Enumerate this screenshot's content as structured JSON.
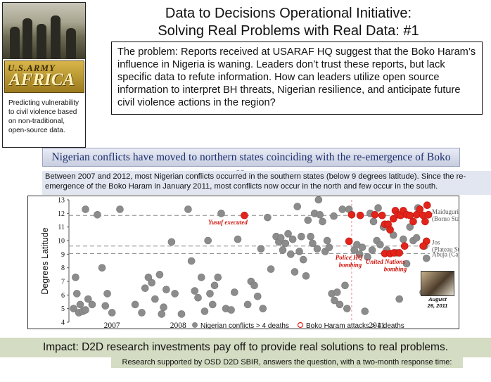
{
  "sidebar": {
    "photo_icon": "soldiers-photo",
    "logo_line1": "U.S.ARMY",
    "logo_line2": "AFRICA",
    "caption": "Predicting vulnerability to civil violence based on non-traditional, open-source data."
  },
  "header": {
    "title_line1": "Data to Decisions Operational Initiative:",
    "title_line2": "Solving Real Problems with Real Data: #1"
  },
  "problem": {
    "text": "The problem: Reports received at USARAF HQ suggest that the Boko Haram’s influence in Nigeria is waning.  Leaders don’t trust these reports, but lack specific data to refute information.  How can leaders utilize open source information to interpret BH threats, Nigerian resilience, and anticipate future civil violence actions in the region?"
  },
  "banner": {
    "text": "Nigerian conflicts have moved to northern states coinciding with the re-emergence of Boko Haram"
  },
  "description": {
    "text": "Between 2007 and 2012, most Nigerian conflicts occurred in the southern states (below 9 degrees latitude).  Since the re-emergence of the Boko Haram in January 2011, most conflicts now occur in the north and few occur in the south."
  },
  "chart_data": {
    "type": "scatter",
    "ylabel": "Degrees Latitude",
    "xlabel": "",
    "ylim": [
      4,
      13
    ],
    "xlim": [
      2006.35,
      2011.8
    ],
    "yticks": [
      4,
      5,
      6,
      7,
      8,
      9,
      10,
      11,
      12,
      13
    ],
    "xticks": [
      {
        "label": "2007",
        "x": 2007
      },
      {
        "label": "2008",
        "x": 2008
      },
      {
        "label": "2011",
        "x": 2011
      }
    ],
    "colors": {
      "nigerian": "#8c8c8c",
      "boko": "#e3241b",
      "annotation": "#d1140c",
      "reference": "#888888"
    },
    "reference_lines": [
      {
        "y": 11.85,
        "label1": "Maiduguri",
        "label2": "(Borno State)"
      },
      {
        "y": 9.6,
        "label1": "Jos",
        "label2": "(Plateau State)"
      },
      {
        "y": 9.05,
        "label1": "Abuja (Capital)",
        "label2": ""
      }
    ],
    "vertical_line": {
      "x": 2010.62
    },
    "annotations": [
      {
        "text": "Yusuf executed",
        "x": 2008.75,
        "y": 11.2
      },
      {
        "text": "Police HQ",
        "x": 2010.58,
        "y": 8.6
      },
      {
        "text": "bombing",
        "x": 2010.6,
        "y": 8.05
      },
      {
        "text": "United Nations",
        "x": 2011.13,
        "y": 8.3
      },
      {
        "text": "bombing",
        "x": 2011.28,
        "y": 7.75
      }
    ],
    "legend": {
      "position": "bottom",
      "nigerian_label": "Nigerian conflicts > 4 deaths",
      "boko_label": "Boko Haram attacks > 4 deaths"
    },
    "series": [
      {
        "name": "Nigerian conflicts > 4 deaths",
        "points": [
          [
            2006.42,
            5.0
          ],
          [
            2006.45,
            7.3
          ],
          [
            2006.47,
            6.1
          ],
          [
            2006.5,
            4.7
          ],
          [
            2006.52,
            5.3
          ],
          [
            2006.56,
            4.8
          ],
          [
            2006.6,
            4.9
          ],
          [
            2006.64,
            5.7
          ],
          [
            2006.7,
            5.3
          ],
          [
            2006.78,
            11.9
          ],
          [
            2006.85,
            8.0
          ],
          [
            2006.9,
            5.2
          ],
          [
            2006.93,
            6.1
          ],
          [
            2007.12,
            12.3
          ],
          [
            2007.35,
            5.3
          ],
          [
            2007.45,
            4.7
          ],
          [
            2007.5,
            6.5
          ],
          [
            2007.55,
            7.3
          ],
          [
            2007.6,
            6.9
          ],
          [
            2007.65,
            5.7
          ],
          [
            2007.72,
            7.5
          ],
          [
            2007.75,
            4.6
          ],
          [
            2007.78,
            5.1
          ],
          [
            2007.82,
            6.4
          ],
          [
            2007.9,
            9.9
          ],
          [
            2007.95,
            6.1
          ],
          [
            2008.05,
            4.6
          ],
          [
            2008.15,
            12.3
          ],
          [
            2008.2,
            8.5
          ],
          [
            2008.25,
            6.3
          ],
          [
            2008.3,
            5.8
          ],
          [
            2008.35,
            7.3
          ],
          [
            2008.4,
            4.8
          ],
          [
            2008.45,
            10.0
          ],
          [
            2008.48,
            6.1
          ],
          [
            2008.52,
            5.3
          ],
          [
            2008.55,
            6.7
          ],
          [
            2008.6,
            7.3
          ],
          [
            2008.65,
            12.0
          ],
          [
            2008.72,
            5.0
          ],
          [
            2008.8,
            4.9
          ],
          [
            2008.85,
            6.2
          ],
          [
            2009.05,
            5.3
          ],
          [
            2009.1,
            7.0
          ],
          [
            2009.15,
            6.7
          ],
          [
            2009.2,
            5.9
          ],
          [
            2009.25,
            9.4
          ],
          [
            2009.28,
            5.0
          ],
          [
            2009.35,
            11.7
          ],
          [
            2009.4,
            7.9
          ],
          [
            2009.48,
            10.3
          ],
          [
            2009.52,
            9.9
          ],
          [
            2009.55,
            10.2
          ],
          [
            2009.58,
            9.3
          ],
          [
            2009.62,
            9.8
          ],
          [
            2009.66,
            10.5
          ],
          [
            2009.7,
            9.0
          ],
          [
            2009.73,
            10.1
          ],
          [
            2009.76,
            7.7
          ],
          [
            2009.8,
            12.5
          ],
          [
            2009.83,
            9.2
          ],
          [
            2009.86,
            10.3
          ],
          [
            2009.89,
            8.6
          ],
          [
            2009.93,
            7.4
          ],
          [
            2009.96,
            11.5
          ],
          [
            2010.0,
            10.3
          ],
          [
            2010.03,
            9.8
          ],
          [
            2010.06,
            12.0
          ],
          [
            2010.1,
            9.4
          ],
          [
            2010.14,
            11.9
          ],
          [
            2010.18,
            11.4
          ],
          [
            2010.22,
            9.2
          ],
          [
            2010.25,
            10.0
          ],
          [
            2010.28,
            9.5
          ],
          [
            2010.32,
            6.1
          ],
          [
            2010.36,
            5.6
          ],
          [
            2010.4,
            6.2
          ],
          [
            2010.44,
            5.3
          ],
          [
            2010.48,
            12.3
          ],
          [
            2010.52,
            6.7
          ],
          [
            2010.55,
            5.0
          ],
          [
            2010.58,
            12.3
          ],
          [
            2010.66,
            9.3
          ],
          [
            2010.7,
            9.7
          ],
          [
            2010.74,
            9.0
          ],
          [
            2010.78,
            9.5
          ],
          [
            2010.82,
            4.8
          ],
          [
            2010.86,
            8.8
          ],
          [
            2010.9,
            12.0
          ],
          [
            2010.95,
            11.4
          ],
          [
            2011.0,
            10.0
          ],
          [
            2011.05,
            9.7
          ],
          [
            2011.1,
            11.0
          ],
          [
            2011.15,
            9.3
          ],
          [
            2011.2,
            10.8
          ],
          [
            2011.25,
            10.4
          ],
          [
            2011.3,
            9.1
          ],
          [
            2011.34,
            5.7
          ],
          [
            2011.4,
            10.1
          ],
          [
            2011.45,
            8.3
          ],
          [
            2011.5,
            11.0
          ],
          [
            2011.55,
            10.0
          ],
          [
            2011.6,
            10.2
          ],
          [
            2011.7,
            6.2
          ],
          [
            2011.72,
            9.6
          ],
          [
            2011.75,
            8.7
          ],
          [
            2011.02,
            12.4
          ],
          [
            2010.93,
            9.3
          ],
          [
            2011.62,
            12.4
          ],
          [
            2010.35,
            11.8
          ],
          [
            2008.9,
            10.1
          ],
          [
            2007.0,
            4.7
          ],
          [
            2006.6,
            12.3
          ],
          [
            2010.12,
            13.0
          ]
        ]
      },
      {
        "name": "Boko Haram attacks > 4 deaths",
        "points": [
          [
            2009.0,
            11.85
          ],
          [
            2010.62,
            11.9
          ],
          [
            2010.75,
            11.85
          ],
          [
            2010.58,
            9.95
          ],
          [
            2010.97,
            11.9
          ],
          [
            2011.08,
            11.85
          ],
          [
            2011.12,
            11.2
          ],
          [
            2011.17,
            11.2
          ],
          [
            2011.2,
            10.8
          ],
          [
            2011.25,
            11.6
          ],
          [
            2011.28,
            12.2
          ],
          [
            2011.32,
            11.9
          ],
          [
            2011.36,
            11.85
          ],
          [
            2011.4,
            12.2
          ],
          [
            2011.45,
            11.9
          ],
          [
            2011.5,
            11.85
          ],
          [
            2011.55,
            11.4
          ],
          [
            2011.6,
            11.9
          ],
          [
            2011.65,
            12.3
          ],
          [
            2011.7,
            11.85
          ],
          [
            2011.73,
            11.4
          ],
          [
            2011.76,
            12.6
          ],
          [
            2011.78,
            11.9
          ],
          [
            2011.12,
            9.05
          ],
          [
            2011.2,
            9.05
          ],
          [
            2011.26,
            9.1
          ],
          [
            2011.34,
            9.1
          ],
          [
            2011.42,
            9.6
          ],
          [
            2011.75,
            9.95
          ],
          [
            2011.7,
            9.6
          ]
        ]
      }
    ]
  },
  "thumbnail": {
    "icon": "news-photo-icon",
    "caption_line1": "August",
    "caption_line2": "26, 2011"
  },
  "impact": {
    "text": "Impact: D2D research investments pay off to provide real solutions to real problems."
  },
  "support": {
    "text": "Research supported by OSD D2D SBIR, answers the question, with a two-month response time:"
  }
}
